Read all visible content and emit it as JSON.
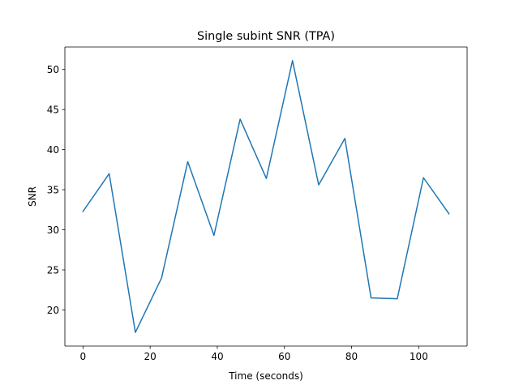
{
  "chart_data": {
    "type": "line",
    "title": "Single subint SNR (TPA)",
    "xlabel": "Time (seconds)",
    "ylabel": "SNR",
    "xlim": [
      -5.4,
      114.4
    ],
    "ylim": [
      15.5,
      52.8
    ],
    "xticks": [
      0,
      20,
      40,
      60,
      80,
      100
    ],
    "yticks": [
      20,
      25,
      30,
      35,
      40,
      45,
      50
    ],
    "grid": false,
    "legend": "none",
    "series": [
      {
        "color": "#1f77b4",
        "x": [
          0,
          7.8,
          15.6,
          23.4,
          31.2,
          39.0,
          46.8,
          54.6,
          62.4,
          70.2,
          78.0,
          85.8,
          93.6,
          101.4,
          109.0
        ],
        "y": [
          32.3,
          37.0,
          17.2,
          24.0,
          38.5,
          29.3,
          43.8,
          36.4,
          51.1,
          35.6,
          41.4,
          21.5,
          21.4,
          36.5,
          32.0
        ]
      }
    ]
  }
}
